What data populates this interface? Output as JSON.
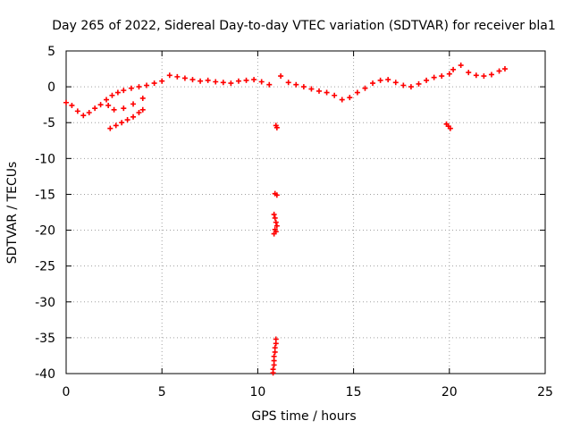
{
  "chart_data": {
    "type": "scatter",
    "title": "Day 265 of 2022, Sidereal Day-to-day VTEC variation (SDTVAR) for receiver bla1",
    "xlabel": "GPS time / hours",
    "ylabel": "SDTVAR / TECUs",
    "xlim": [
      0,
      25
    ],
    "ylim": [
      -40,
      5
    ],
    "xticks": [
      0,
      5,
      10,
      15,
      20,
      25
    ],
    "yticks": [
      5,
      0,
      -5,
      -10,
      -15,
      -20,
      -25,
      -30,
      -35,
      -40
    ],
    "grid": true,
    "marker": "plus",
    "color": "#ff0000",
    "series": [
      {
        "name": "main-trend",
        "points": [
          [
            0.0,
            -2.2
          ],
          [
            0.3,
            -2.6
          ],
          [
            0.6,
            -3.4
          ],
          [
            0.9,
            -4.0
          ],
          [
            1.2,
            -3.6
          ],
          [
            1.5,
            -3.0
          ],
          [
            1.8,
            -2.5
          ],
          [
            2.1,
            -1.8
          ],
          [
            2.4,
            -1.2
          ],
          [
            2.7,
            -0.8
          ],
          [
            3.0,
            -0.5
          ],
          [
            3.4,
            -0.2
          ],
          [
            3.8,
            0.0
          ],
          [
            4.2,
            0.2
          ],
          [
            4.6,
            0.5
          ],
          [
            5.0,
            0.8
          ],
          [
            5.4,
            1.6
          ],
          [
            5.8,
            1.4
          ],
          [
            6.2,
            1.2
          ],
          [
            6.6,
            1.0
          ],
          [
            7.0,
            0.8
          ],
          [
            7.4,
            0.9
          ],
          [
            7.8,
            0.7
          ],
          [
            8.2,
            0.6
          ],
          [
            8.6,
            0.5
          ],
          [
            9.0,
            0.8
          ],
          [
            9.4,
            0.9
          ],
          [
            9.8,
            1.0
          ],
          [
            10.2,
            0.7
          ],
          [
            10.6,
            0.3
          ],
          [
            11.2,
            1.5
          ],
          [
            11.6,
            0.6
          ],
          [
            12.0,
            0.3
          ],
          [
            12.4,
            0.0
          ],
          [
            12.8,
            -0.3
          ],
          [
            13.2,
            -0.6
          ],
          [
            13.6,
            -0.8
          ],
          [
            14.0,
            -1.2
          ],
          [
            14.4,
            -1.8
          ],
          [
            14.8,
            -1.5
          ],
          [
            15.2,
            -0.8
          ],
          [
            15.6,
            -0.2
          ],
          [
            16.0,
            0.5
          ],
          [
            16.4,
            0.9
          ],
          [
            16.8,
            1.0
          ],
          [
            17.2,
            0.6
          ],
          [
            17.6,
            0.2
          ],
          [
            18.0,
            0.0
          ],
          [
            18.4,
            0.4
          ],
          [
            18.8,
            0.9
          ],
          [
            19.2,
            1.3
          ],
          [
            19.6,
            1.5
          ],
          [
            20.0,
            1.8
          ],
          [
            20.2,
            2.4
          ],
          [
            20.6,
            3.0
          ],
          [
            21.0,
            2.0
          ],
          [
            21.4,
            1.6
          ],
          [
            21.8,
            1.5
          ],
          [
            22.2,
            1.7
          ],
          [
            22.6,
            2.2
          ],
          [
            22.9,
            2.5
          ]
        ]
      },
      {
        "name": "lower-branch",
        "points": [
          [
            2.3,
            -5.8
          ],
          [
            2.6,
            -5.4
          ],
          [
            2.9,
            -5.0
          ],
          [
            3.2,
            -4.6
          ],
          [
            3.5,
            -4.2
          ],
          [
            3.8,
            -3.6
          ],
          [
            4.0,
            -3.2
          ],
          [
            2.2,
            -2.6
          ],
          [
            2.5,
            -3.2
          ],
          [
            3.0,
            -3.0
          ],
          [
            3.5,
            -2.4
          ],
          [
            4.0,
            -1.6
          ]
        ]
      },
      {
        "name": "outliers",
        "points": [
          [
            10.95,
            -5.4
          ],
          [
            11.0,
            -5.7
          ],
          [
            10.9,
            -14.9
          ],
          [
            11.0,
            -15.1
          ],
          [
            10.85,
            -17.8
          ],
          [
            10.9,
            -18.3
          ],
          [
            10.95,
            -18.9
          ],
          [
            11.0,
            -19.4
          ],
          [
            10.9,
            -19.9
          ],
          [
            10.95,
            -20.2
          ],
          [
            10.85,
            -20.5
          ],
          [
            10.95,
            -35.2
          ],
          [
            10.95,
            -35.8
          ],
          [
            10.9,
            -36.4
          ],
          [
            10.9,
            -37.0
          ],
          [
            10.85,
            -37.6
          ],
          [
            10.85,
            -38.2
          ],
          [
            10.85,
            -38.8
          ],
          [
            10.8,
            -39.4
          ],
          [
            10.8,
            -39.9
          ],
          [
            19.85,
            -5.2
          ],
          [
            19.95,
            -5.5
          ],
          [
            20.05,
            -5.8
          ]
        ]
      }
    ]
  }
}
